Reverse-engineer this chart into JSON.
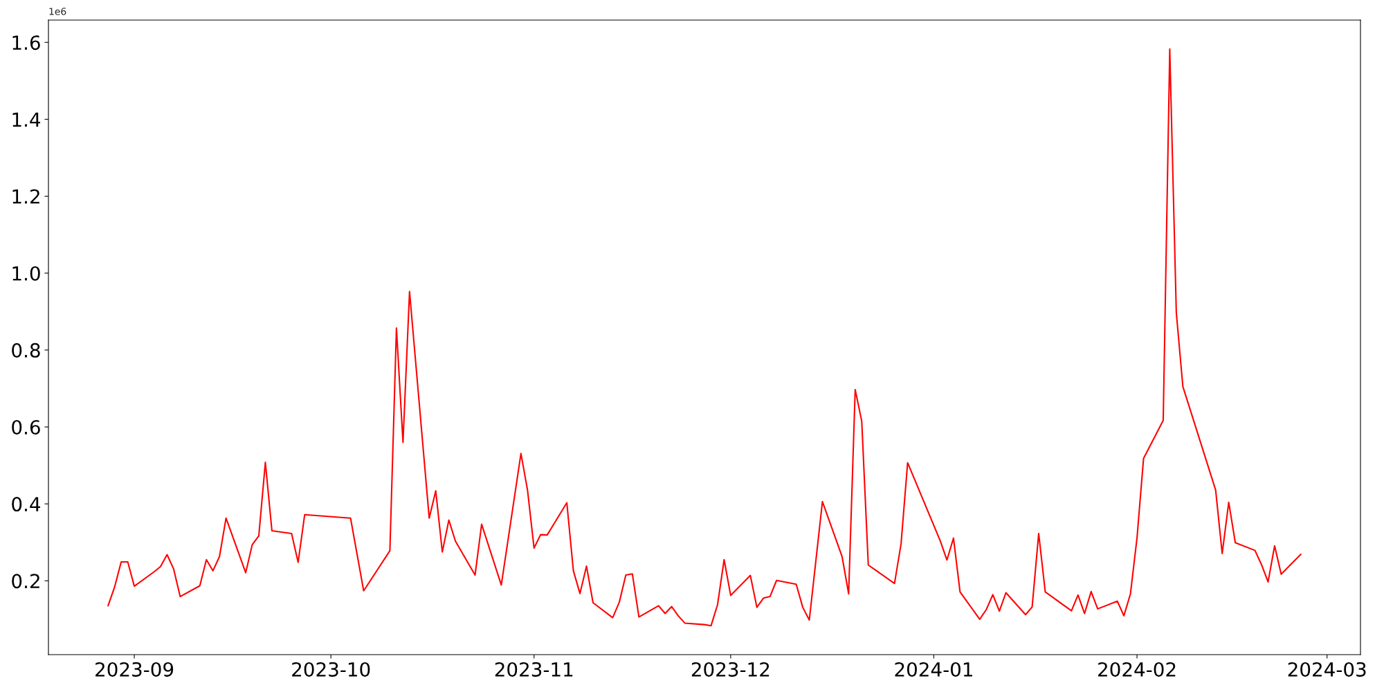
{
  "chart_data": {
    "type": "line",
    "x": [
      "2023-08-28",
      "2023-08-29",
      "2023-08-30",
      "2023-08-31",
      "2023-09-01",
      "2023-09-04",
      "2023-09-05",
      "2023-09-06",
      "2023-09-07",
      "2023-09-08",
      "2023-09-11",
      "2023-09-12",
      "2023-09-13",
      "2023-09-14",
      "2023-09-15",
      "2023-09-18",
      "2023-09-19",
      "2023-09-20",
      "2023-09-21",
      "2023-09-22",
      "2023-09-25",
      "2023-09-26",
      "2023-09-27",
      "2023-10-04",
      "2023-10-06",
      "2023-10-10",
      "2023-10-11",
      "2023-10-12",
      "2023-10-13",
      "2023-10-16",
      "2023-10-17",
      "2023-10-18",
      "2023-10-19",
      "2023-10-20",
      "2023-10-23",
      "2023-10-24",
      "2023-10-27",
      "2023-10-30",
      "2023-10-31",
      "2023-11-01",
      "2023-11-02",
      "2023-11-03",
      "2023-11-06",
      "2023-11-07",
      "2023-11-08",
      "2023-11-09",
      "2023-11-10",
      "2023-11-13",
      "2023-11-14",
      "2023-11-15",
      "2023-11-16",
      "2023-11-17",
      "2023-11-20",
      "2023-11-21",
      "2023-11-22",
      "2023-11-23",
      "2023-11-24",
      "2023-11-27",
      "2023-11-28",
      "2023-11-29",
      "2023-11-30",
      "2023-12-01",
      "2023-12-04",
      "2023-12-05",
      "2023-12-06",
      "2023-12-07",
      "2023-12-08",
      "2023-12-11",
      "2023-12-12",
      "2023-12-13",
      "2023-12-15",
      "2023-12-18",
      "2023-12-19",
      "2023-12-20",
      "2023-12-21",
      "2023-12-22",
      "2023-12-26",
      "2023-12-27",
      "2023-12-28",
      "2024-01-02",
      "2024-01-03",
      "2024-01-04",
      "2024-01-05",
      "2024-01-08",
      "2024-01-09",
      "2024-01-10",
      "2024-01-11",
      "2024-01-12",
      "2024-01-15",
      "2024-01-16",
      "2024-01-17",
      "2024-01-18",
      "2024-01-22",
      "2024-01-23",
      "2024-01-24",
      "2024-01-25",
      "2024-01-26",
      "2024-01-29",
      "2024-01-30",
      "2024-01-31",
      "2024-02-01",
      "2024-02-02",
      "2024-02-05",
      "2024-02-06",
      "2024-02-07",
      "2024-02-08",
      "2024-02-13",
      "2024-02-14",
      "2024-02-15",
      "2024-02-16",
      "2024-02-19",
      "2024-02-20",
      "2024-02-21",
      "2024-02-22",
      "2024-02-23",
      "2024-02-26"
    ],
    "series": [
      {
        "color": "#ff0000",
        "values": [
          0.135,
          0.184,
          0.249,
          0.249,
          0.186,
          0.223,
          0.237,
          0.268,
          0.231,
          0.159,
          0.187,
          0.255,
          0.226,
          0.263,
          0.363,
          0.221,
          0.294,
          0.317,
          0.508,
          0.33,
          0.323,
          0.248,
          0.372,
          0.363,
          0.174,
          0.278,
          0.857,
          0.56,
          0.952,
          0.363,
          0.434,
          0.275,
          0.358,
          0.303,
          0.215,
          0.347,
          0.189,
          0.531,
          0.436,
          0.285,
          0.32,
          0.319,
          0.403,
          0.226,
          0.167,
          0.238,
          0.143,
          0.104,
          0.144,
          0.215,
          0.218,
          0.106,
          0.135,
          0.115,
          0.133,
          0.109,
          0.09,
          0.086,
          0.083,
          0.138,
          0.255,
          0.162,
          0.214,
          0.131,
          0.155,
          0.159,
          0.201,
          0.191,
          0.131,
          0.098,
          0.406,
          0.263,
          0.166,
          0.697,
          0.615,
          0.241,
          0.193,
          0.296,
          0.507,
          0.303,
          0.254,
          0.311,
          0.171,
          0.1,
          0.125,
          0.164,
          0.121,
          0.169,
          0.112,
          0.132,
          0.323,
          0.171,
          0.122,
          0.163,
          0.115,
          0.172,
          0.127,
          0.147,
          0.109,
          0.166,
          0.311,
          0.518,
          0.617,
          1.583,
          0.897,
          0.705,
          0.436,
          0.271,
          0.404,
          0.299,
          0.279,
          0.242,
          0.197,
          0.291,
          0.217,
          0.269
        ]
      }
    ],
    "xlim": [
      "2023-08-18T21:36",
      "2024-03-06T02:24"
    ],
    "xticks": [
      {
        "value": "2023-09-01",
        "label": "2023-09"
      },
      {
        "value": "2023-10-01",
        "label": "2023-10"
      },
      {
        "value": "2023-11-01",
        "label": "2023-11"
      },
      {
        "value": "2023-12-01",
        "label": "2023-12"
      },
      {
        "value": "2024-01-01",
        "label": "2024-01"
      },
      {
        "value": "2024-02-01",
        "label": "2024-02"
      },
      {
        "value": "2024-03-01",
        "label": "2024-03"
      }
    ],
    "ylim": [
      0.008,
      1.658
    ],
    "yticks": [
      0.2,
      0.4,
      0.6,
      0.8,
      {
        "value": 1.0,
        "label": "1.0"
      },
      1.2,
      1.4,
      1.6
    ],
    "annotations": [
      "1e6"
    ],
    "grid": false
  }
}
